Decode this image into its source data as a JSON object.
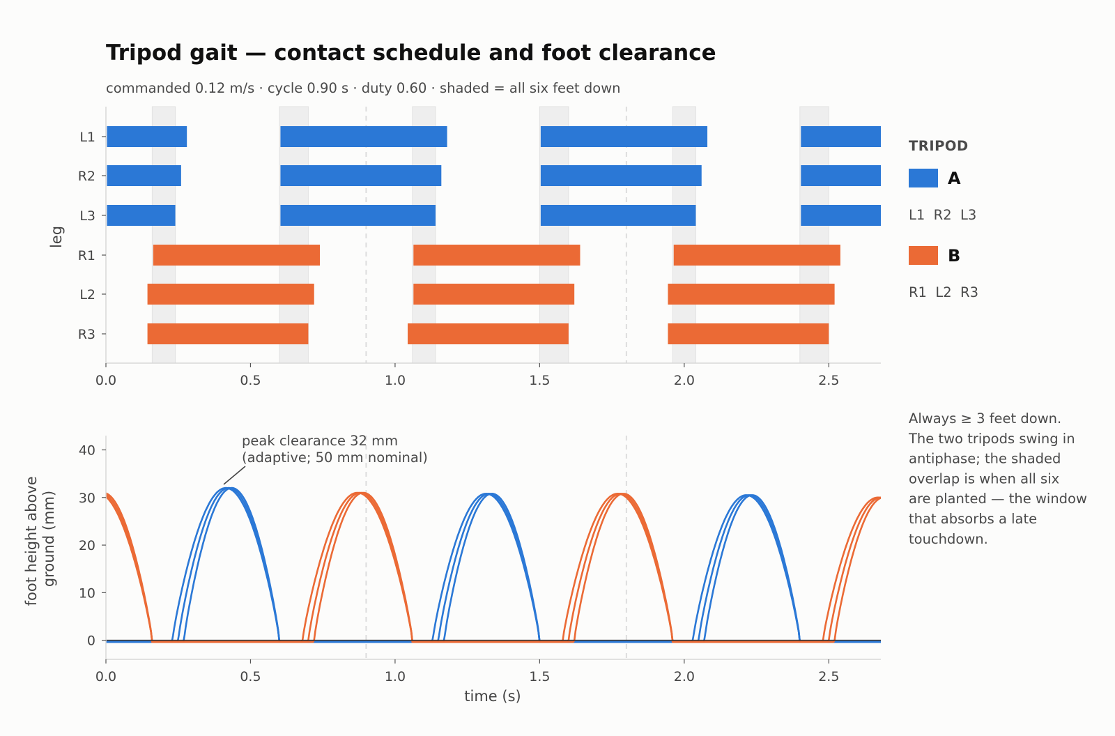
{
  "title": "Tripod gait — contact schedule and foot clearance",
  "subtitle": "commanded 0.12 m/s · cycle 0.90 s · duty 0.60 · shaded = all six feet down",
  "colors": {
    "A": "#2b78d6",
    "B": "#eb6a35",
    "shade": "#eeeeee",
    "cycle_line": "#dddddd",
    "zero_line": "#222222"
  },
  "legend": {
    "heading": "TRIPOD",
    "A": {
      "name": "A",
      "legs": "L1  R2  L3"
    },
    "B": {
      "name": "B",
      "legs": "R1  L2  R3"
    }
  },
  "note": [
    "Always ≥ 3 feet down.",
    "The two tripods swing in",
    "antiphase; the shaded",
    "overlap is when all six",
    "are planted — the window",
    "that absorbs a late",
    "touchdown."
  ],
  "annotation": [
    "peak clearance 32 mm",
    "(adaptive; 50 mm nominal)"
  ],
  "chart_data": [
    {
      "type": "bar",
      "subtype": "gantt",
      "ylabel": "leg",
      "xlabel": "",
      "xlim": [
        0,
        2.68
      ],
      "xticks": [
        "0.0",
        "0.5",
        "1.0",
        "1.5",
        "2.0",
        "2.5"
      ],
      "legs": [
        "L1",
        "R2",
        "L3",
        "R1",
        "L2",
        "R3"
      ],
      "cycle_lines": [
        0.9,
        1.8
      ],
      "all_feet_down_windows": [
        [
          0.16,
          0.24
        ],
        [
          0.6,
          0.7
        ],
        [
          1.06,
          1.14
        ],
        [
          1.5,
          1.6
        ],
        [
          1.96,
          2.04
        ],
        [
          2.4,
          2.5
        ]
      ],
      "series": [
        {
          "name": "A",
          "leg": "L1",
          "stance": [
            [
              0.0,
              0.28
            ],
            [
              0.6,
              1.18
            ],
            [
              1.5,
              2.08
            ],
            [
              2.4,
              2.68
            ]
          ]
        },
        {
          "name": "A",
          "leg": "R2",
          "stance": [
            [
              0.0,
              0.26
            ],
            [
              0.6,
              1.16
            ],
            [
              1.5,
              2.06
            ],
            [
              2.4,
              2.68
            ]
          ]
        },
        {
          "name": "A",
          "leg": "L3",
          "stance": [
            [
              0.0,
              0.24
            ],
            [
              0.6,
              1.14
            ],
            [
              1.5,
              2.04
            ],
            [
              2.4,
              2.68
            ]
          ]
        },
        {
          "name": "B",
          "leg": "R1",
          "stance": [
            [
              0.16,
              0.74
            ],
            [
              1.06,
              1.64
            ],
            [
              1.96,
              2.54
            ]
          ]
        },
        {
          "name": "B",
          "leg": "L2",
          "stance": [
            [
              0.14,
              0.72
            ],
            [
              1.06,
              1.62
            ],
            [
              1.94,
              2.52
            ]
          ]
        },
        {
          "name": "B",
          "leg": "R3",
          "stance": [
            [
              0.14,
              0.7
            ],
            [
              1.04,
              1.6
            ],
            [
              1.94,
              2.5
            ]
          ]
        }
      ]
    },
    {
      "type": "line",
      "xlabel": "time  (s)",
      "ylabel": "foot height above ground  (mm)",
      "xlim": [
        0,
        2.68
      ],
      "ylim": [
        -4,
        43
      ],
      "xticks": [
        "0.0",
        "0.5",
        "1.0",
        "1.5",
        "2.0",
        "2.5"
      ],
      "yticks": [
        "0",
        "10",
        "20",
        "30",
        "40"
      ],
      "series": [
        {
          "name": "A",
          "leg": "L1",
          "swings": [
            [
              0.23,
              0.6,
              32.0
            ],
            [
              1.13,
              1.5,
              30.8
            ],
            [
              2.03,
              2.4,
              30.5
            ]
          ]
        },
        {
          "name": "A",
          "leg": "R2",
          "swings": [
            [
              0.25,
              0.6,
              32.0
            ],
            [
              1.15,
              1.5,
              30.8
            ],
            [
              2.05,
              2.4,
              30.5
            ]
          ]
        },
        {
          "name": "A",
          "leg": "L3",
          "swings": [
            [
              0.27,
              0.6,
              32.0
            ],
            [
              1.17,
              1.5,
              30.8
            ],
            [
              2.07,
              2.4,
              30.5
            ]
          ]
        },
        {
          "name": "B",
          "leg": "R1",
          "swings": [
            [
              -0.22,
              0.16,
              31.0
            ],
            [
              0.68,
              1.06,
              31.0
            ],
            [
              1.58,
              1.96,
              30.8
            ],
            [
              2.48,
              2.86,
              30.0
            ]
          ]
        },
        {
          "name": "B",
          "leg": "L2",
          "swings": [
            [
              -0.2,
              0.16,
              31.0
            ],
            [
              0.7,
              1.06,
              31.0
            ],
            [
              1.6,
              1.96,
              30.8
            ],
            [
              2.5,
              2.86,
              30.0
            ]
          ]
        },
        {
          "name": "B",
          "leg": "R3",
          "swings": [
            [
              -0.18,
              0.16,
              31.0
            ],
            [
              0.72,
              1.06,
              31.0
            ],
            [
              1.62,
              1.96,
              30.8
            ],
            [
              2.52,
              2.86,
              30.0
            ]
          ]
        }
      ],
      "cycle_lines": [
        0.9,
        1.8
      ]
    }
  ]
}
